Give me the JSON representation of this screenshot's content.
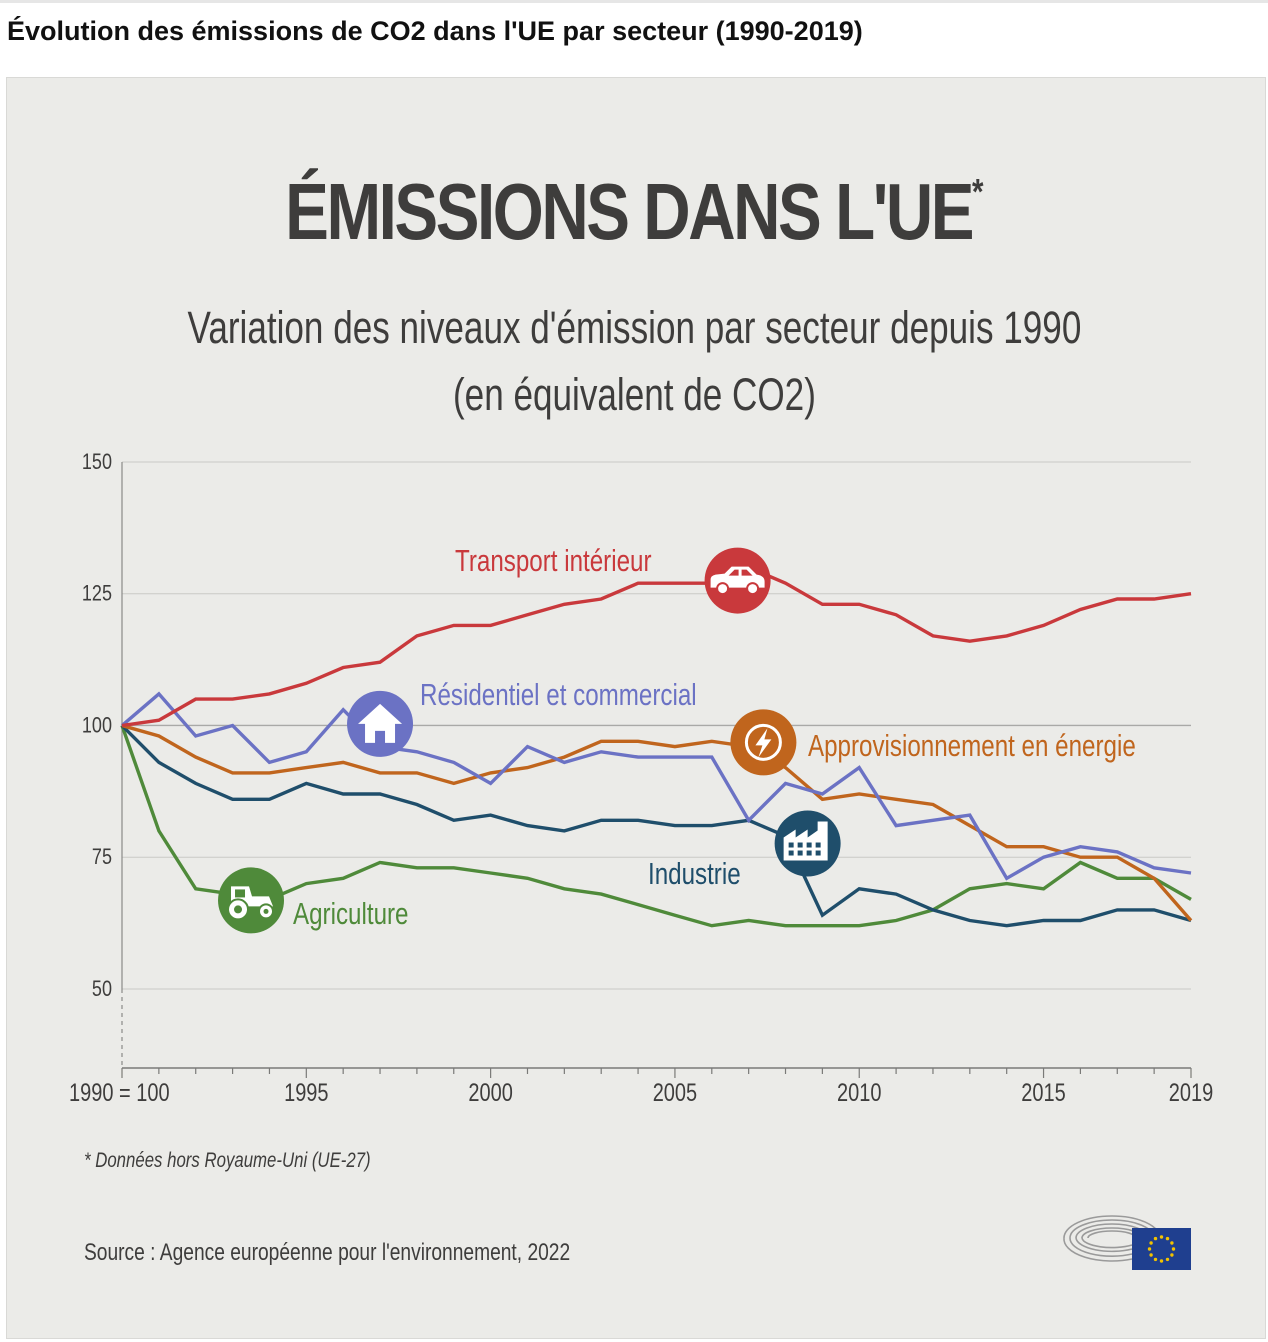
{
  "page": {
    "title": "Évolution des émissions de CO2 dans l'UE par secteur (1990-2019)"
  },
  "infographic": {
    "headline": "ÉMISSIONS DANS L'UE",
    "headline_mark": "*",
    "subtitle_line1": "Variation des niveaux d'émission par secteur depuis 1990",
    "subtitle_line2": "(en équivalent de CO2)",
    "footnote": "* Données hors Royaume-Uni (UE-27)",
    "source": "Source : Agence européenne pour l'environnement, 2022"
  },
  "chart_data": {
    "type": "line",
    "title": "Variation des niveaux d'émission par secteur depuis 1990 (en équivalent de CO2)",
    "xlabel": "",
    "ylabel": "",
    "x": [
      1990,
      1991,
      1992,
      1993,
      1994,
      1995,
      1996,
      1997,
      1998,
      1999,
      2000,
      2001,
      2002,
      2003,
      2004,
      2005,
      2006,
      2007,
      2008,
      2009,
      2010,
      2011,
      2012,
      2013,
      2014,
      2015,
      2016,
      2017,
      2018,
      2019
    ],
    "xlim": [
      1990,
      2019
    ],
    "ylim": [
      35,
      150
    ],
    "y_ticks": [
      50,
      75,
      100,
      125,
      150
    ],
    "x_ticks": [
      {
        "value": 1990,
        "label": "1990 = 100"
      },
      {
        "value": 1995,
        "label": "1995"
      },
      {
        "value": 2000,
        "label": "2000"
      },
      {
        "value": 2005,
        "label": "2005"
      },
      {
        "value": 2010,
        "label": "2010"
      },
      {
        "value": 2015,
        "label": "2015"
      },
      {
        "value": 2019,
        "label": "2019"
      }
    ],
    "grid": "horizontal",
    "series": [
      {
        "name": "Transport intérieur",
        "color": "#c9393c",
        "icon": "car-icon",
        "values": [
          100,
          101,
          105,
          105,
          106,
          108,
          111,
          112,
          117,
          119,
          119,
          121,
          123,
          124,
          127,
          127,
          127,
          130,
          127,
          123,
          123,
          121,
          117,
          116,
          117,
          119,
          122,
          124,
          124,
          125
        ]
      },
      {
        "name": "Résidentiel et commercial",
        "color": "#6b72c4",
        "icon": "house-icon",
        "values": [
          100,
          106,
          98,
          100,
          93,
          95,
          103,
          96,
          95,
          93,
          89,
          96,
          93,
          95,
          94,
          94,
          94,
          82,
          89,
          87,
          92,
          81,
          82,
          83,
          71,
          75,
          77,
          76,
          73,
          72
        ]
      },
      {
        "name": "Approvisionnement en énergie",
        "color": "#c0651d",
        "icon": "lightning-icon",
        "values": [
          100,
          98,
          94,
          91,
          91,
          92,
          93,
          91,
          91,
          89,
          91,
          92,
          94,
          97,
          97,
          96,
          97,
          96,
          92,
          86,
          87,
          86,
          85,
          81,
          77,
          77,
          75,
          75,
          71,
          63
        ]
      },
      {
        "name": "Industrie",
        "color": "#1f4e6b",
        "icon": "factory-icon",
        "values": [
          100,
          93,
          89,
          86,
          86,
          89,
          87,
          87,
          85,
          82,
          83,
          81,
          80,
          82,
          82,
          81,
          81,
          82,
          79,
          64,
          69,
          68,
          65,
          63,
          62,
          63,
          63,
          65,
          65,
          63
        ]
      },
      {
        "name": "Agriculture",
        "color": "#4f8a3a",
        "icon": "tractor-icon",
        "values": [
          100,
          80,
          69,
          68,
          67,
          70,
          71,
          74,
          73,
          73,
          72,
          71,
          69,
          68,
          66,
          64,
          62,
          63,
          62,
          62,
          62,
          63,
          65,
          69,
          70,
          69,
          74,
          71,
          71,
          67
        ]
      }
    ]
  }
}
